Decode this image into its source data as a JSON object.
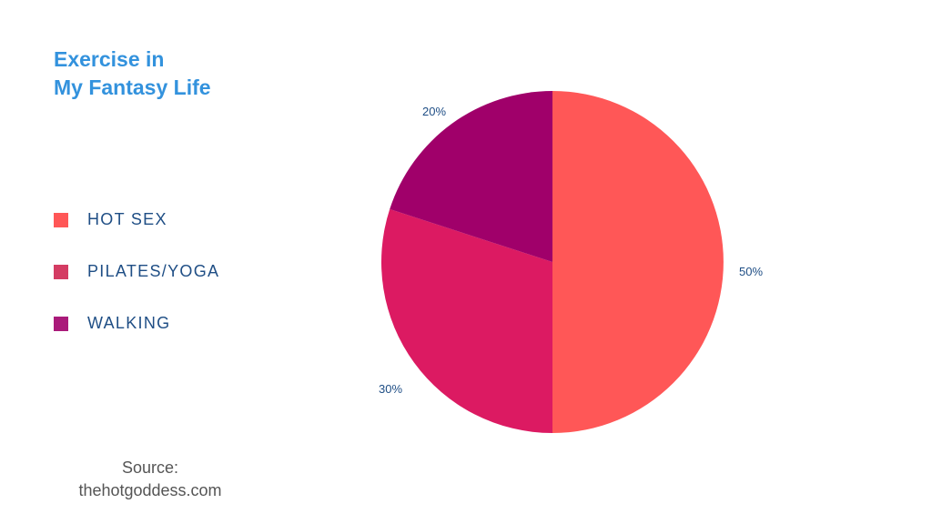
{
  "chart_data": {
    "type": "pie",
    "title_line1": "Exercise in",
    "title_line2": "My Fantasy Life",
    "categories": [
      "HOT SEX",
      "PILATES/YOGA",
      "WALKING"
    ],
    "values": [
      50,
      30,
      20
    ],
    "labels": [
      "50%",
      "30%",
      "20%"
    ],
    "slice_colors": [
      "#ff5757",
      "#dc1a62",
      "#a0006a"
    ],
    "legend_colors": [
      "#ff5757",
      "#d43c63",
      "#aa1a7a"
    ],
    "legend_placement": "left",
    "source_line1": "Source:",
    "source_line2": "thehotgoddess.com"
  }
}
